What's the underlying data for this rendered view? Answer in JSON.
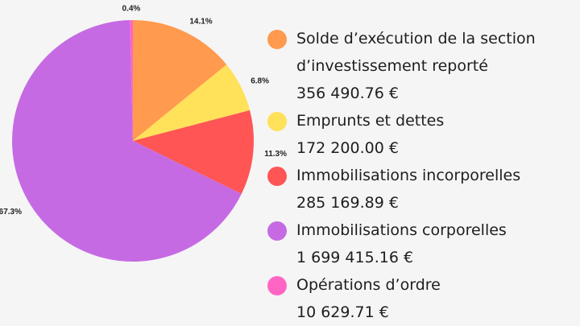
{
  "chart_data": {
    "type": "pie",
    "categories": [
      "Solde d’exécution de la section d’investissement reporté",
      "Emprunts et dettes",
      "Immobilisations incorporelles",
      "Immobilisations corporelles",
      "Opérations d’ordre"
    ],
    "values": [
      14.1,
      6.8,
      11.3,
      67.3,
      0.4
    ],
    "value_labels": [
      "14.1%",
      "6.8%",
      "11.3%",
      "67.3%",
      "0.4%"
    ],
    "amount_labels": [
      "356 490.76 €",
      "172 200.00 €",
      "285 169.89 €",
      "1 699 415.16 €",
      "10 629.71 €"
    ],
    "colors": [
      "#ff9a4f",
      "#ffe15a",
      "#ff5555",
      "#c66ae3",
      "#ff66c4"
    ]
  }
}
